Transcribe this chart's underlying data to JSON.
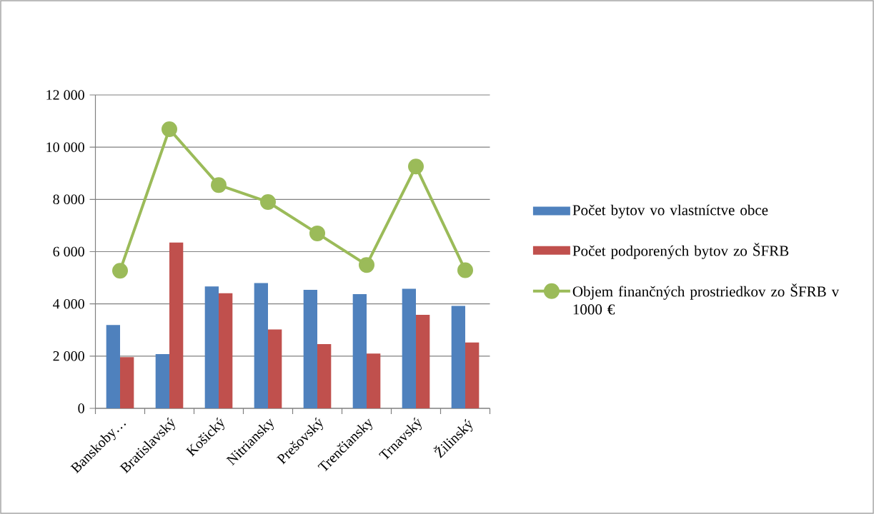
{
  "chart_data": {
    "type": "bar",
    "categories": [
      "Banskoby…",
      "Bratislavský",
      "Košický",
      "Nitriansky",
      "Prešovský",
      "Trenčiansky",
      "Trnavský",
      "Žilinský"
    ],
    "series": [
      {
        "name": "Počet bytov vo vlastníctve obce",
        "color": "#4f81bd",
        "values": [
          3190,
          2080,
          4670,
          4800,
          4540,
          4370,
          4580,
          3920
        ]
      },
      {
        "name": "Počet podporených bytov zo ŠFRB",
        "color": "#c0504d",
        "values": [
          1960,
          6350,
          4410,
          3020,
          2460,
          2100,
          3580,
          2520
        ]
      },
      {
        "name": "Objem finančných prostriedkov zo ŠFRB v 1000 €",
        "type": "line",
        "color": "#9bbb59",
        "values": [
          5270,
          10690,
          8550,
          7900,
          6700,
          5490,
          9260,
          5290
        ]
      }
    ],
    "ylim": [
      0,
      12000
    ],
    "yticks": [
      {
        "value": 0,
        "label": "0"
      },
      {
        "value": 2000,
        "label": "2 000"
      },
      {
        "value": 4000,
        "label": "4 000"
      },
      {
        "value": 6000,
        "label": "6 000"
      },
      {
        "value": 8000,
        "label": "8 000"
      },
      {
        "value": 10000,
        "label": "10 000"
      },
      {
        "value": 12000,
        "label": "12 000"
      }
    ],
    "grid": "y",
    "legend": "right",
    "marker": "circle"
  }
}
